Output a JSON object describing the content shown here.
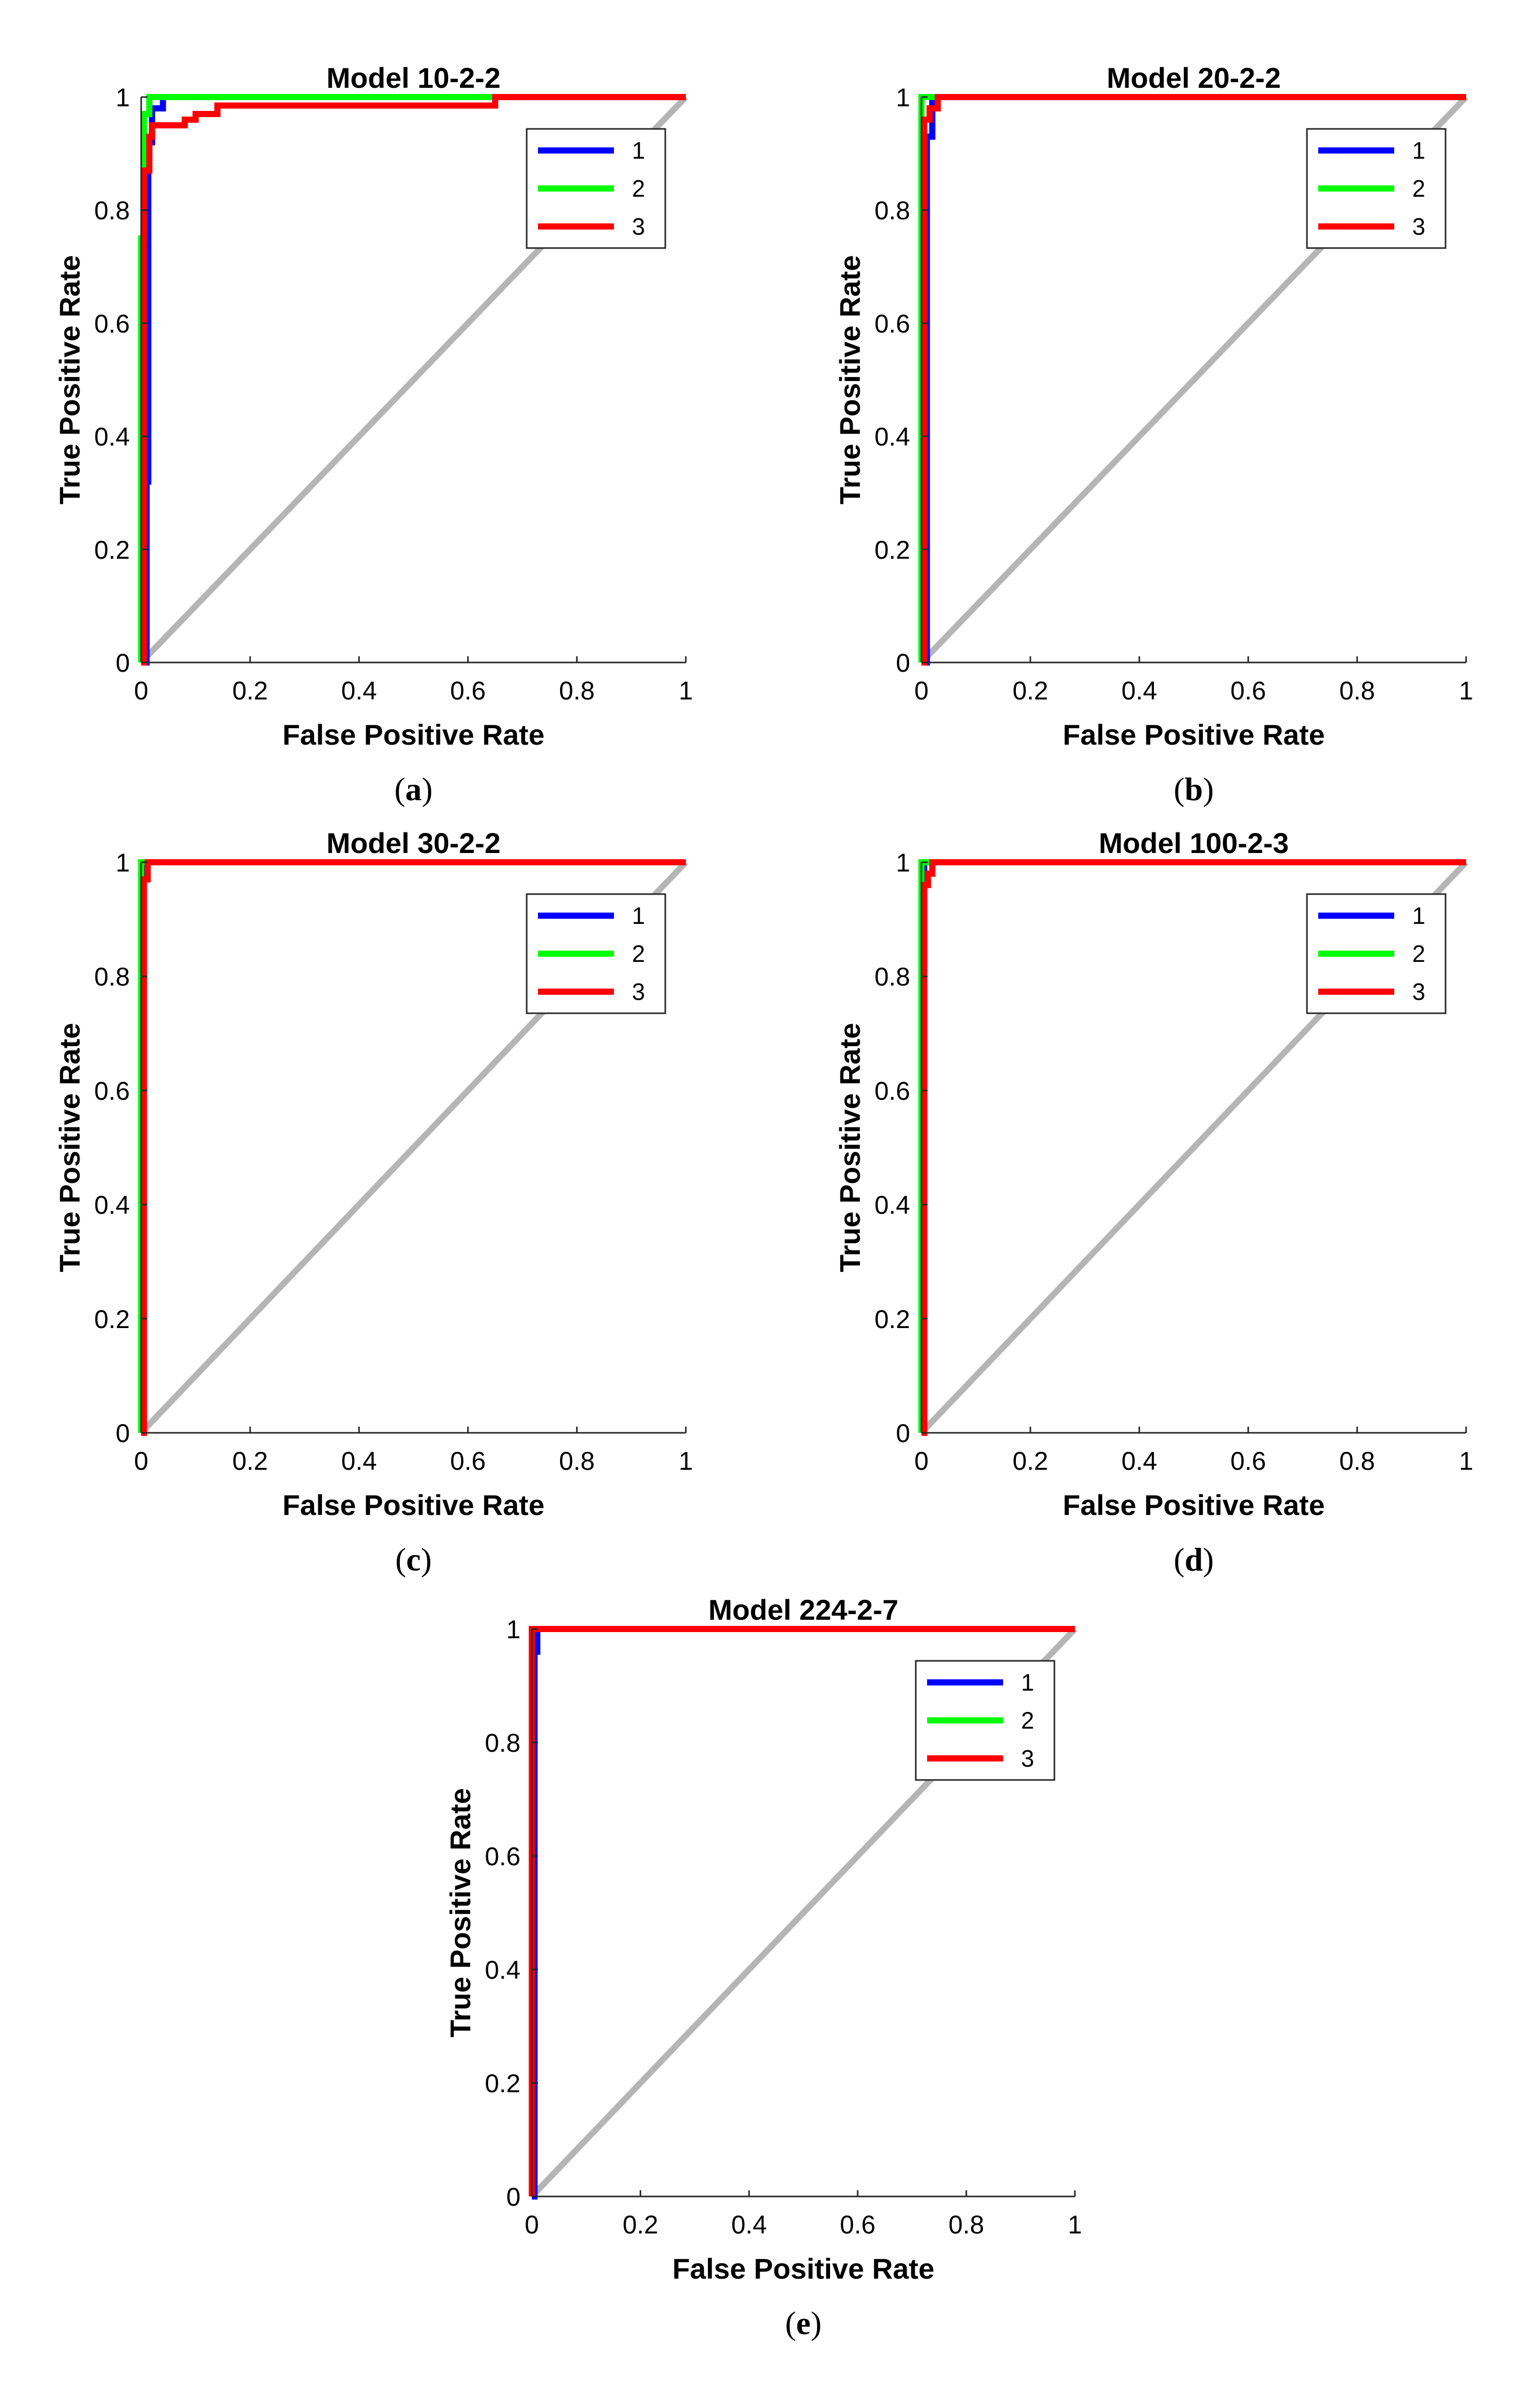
{
  "figure": {
    "axis_xlabel": "False Positive Rate",
    "axis_ylabel": "True Positive Rate"
  },
  "chart_data": [
    {
      "type": "line",
      "title": "Model 10-2-2",
      "caption": "a",
      "xlabel": "False Positive Rate",
      "ylabel": "True Positive Rate",
      "xlim": [
        0,
        1
      ],
      "ylim": [
        0,
        1
      ],
      "xticks": [
        "0",
        "0.2",
        "0.4",
        "0.6",
        "0.8",
        "1"
      ],
      "yticks": [
        "0",
        "0.2",
        "0.4",
        "0.6",
        "0.8",
        "1"
      ],
      "legend": [
        "1",
        "2",
        "3"
      ],
      "legend_position": "top-right",
      "diagonal": {
        "x": [
          0,
          1
        ],
        "y": [
          0,
          1
        ],
        "color": "#b5b5b5"
      },
      "series": [
        {
          "name": "1",
          "color": "#0000ff",
          "x": [
            0,
            0.01,
            0.01,
            0.013,
            0.013,
            0.02,
            0.02,
            0.04,
            0.04,
            1
          ],
          "y": [
            0,
            0,
            0.32,
            0.32,
            0.92,
            0.92,
            0.98,
            0.98,
            1,
            1
          ]
        },
        {
          "name": "2",
          "color": "#00ff00",
          "x": [
            0,
            0,
            0.005,
            0.005,
            0.015,
            0.015,
            0.65,
            0.65,
            1
          ],
          "y": [
            0,
            0.75,
            0.75,
            0.97,
            0.97,
            1,
            1,
            1,
            1
          ]
        },
        {
          "name": "3",
          "color": "#ff0000",
          "x": [
            0,
            0.005,
            0.005,
            0.015,
            0.015,
            0.02,
            0.02,
            0.08,
            0.08,
            0.1,
            0.1,
            0.14,
            0.14,
            0.65,
            0.65,
            1
          ],
          "y": [
            0,
            0,
            0.87,
            0.87,
            0.93,
            0.93,
            0.95,
            0.95,
            0.96,
            0.96,
            0.97,
            0.97,
            0.985,
            0.985,
            1,
            1
          ]
        }
      ]
    },
    {
      "type": "line",
      "title": "Model 20-2-2",
      "caption": "b",
      "xlabel": "False Positive Rate",
      "ylabel": "True Positive Rate",
      "xlim": [
        0,
        1
      ],
      "ylim": [
        0,
        1
      ],
      "xticks": [
        "0",
        "0.2",
        "0.4",
        "0.6",
        "0.8",
        "1"
      ],
      "yticks": [
        "0",
        "0.2",
        "0.4",
        "0.6",
        "0.8",
        "1"
      ],
      "legend": [
        "1",
        "2",
        "3"
      ],
      "legend_position": "top-right",
      "diagonal": {
        "x": [
          0,
          1
        ],
        "y": [
          0,
          1
        ],
        "color": "#b5b5b5"
      },
      "series": [
        {
          "name": "1",
          "color": "#0000ff",
          "x": [
            0,
            0.01,
            0.01,
            0.02,
            0.02,
            1
          ],
          "y": [
            0,
            0,
            0.93,
            0.93,
            1,
            1
          ]
        },
        {
          "name": "2",
          "color": "#00ff00",
          "x": [
            0,
            0,
            1
          ],
          "y": [
            0,
            1,
            1
          ]
        },
        {
          "name": "3",
          "color": "#ff0000",
          "x": [
            0,
            0.005,
            0.005,
            0.015,
            0.015,
            0.03,
            0.03,
            1
          ],
          "y": [
            0,
            0,
            0.96,
            0.96,
            0.98,
            0.98,
            1,
            1
          ]
        }
      ]
    },
    {
      "type": "line",
      "title": "Model 30-2-2",
      "caption": "c",
      "xlabel": "False Positive Rate",
      "ylabel": "True Positive Rate",
      "xlim": [
        0,
        1
      ],
      "ylim": [
        0,
        1
      ],
      "xticks": [
        "0",
        "0.2",
        "0.4",
        "0.6",
        "0.8",
        "1"
      ],
      "yticks": [
        "0",
        "0.2",
        "0.4",
        "0.6",
        "0.8",
        "1"
      ],
      "legend": [
        "1",
        "2",
        "3"
      ],
      "legend_position": "top-right",
      "diagonal": {
        "x": [
          0,
          1
        ],
        "y": [
          0,
          1
        ],
        "color": "#b5b5b5"
      },
      "series": [
        {
          "name": "1",
          "color": "#0000ff",
          "x": [
            0,
            0.005,
            0.005,
            1
          ],
          "y": [
            0,
            0,
            1,
            1
          ]
        },
        {
          "name": "2",
          "color": "#00ff00",
          "x": [
            0,
            0,
            1
          ],
          "y": [
            0,
            1,
            1
          ]
        },
        {
          "name": "3",
          "color": "#ff0000",
          "x": [
            0,
            0.005,
            0.005,
            0.012,
            0.012,
            1
          ],
          "y": [
            0,
            0,
            0.97,
            0.97,
            1,
            1
          ]
        }
      ]
    },
    {
      "type": "line",
      "title": "Model 100-2-3",
      "caption": "d",
      "xlabel": "False Positive Rate",
      "ylabel": "True Positive Rate",
      "xlim": [
        0,
        1
      ],
      "ylim": [
        0,
        1
      ],
      "xticks": [
        "0",
        "0.2",
        "0.4",
        "0.6",
        "0.8",
        "1"
      ],
      "yticks": [
        "0",
        "0.2",
        "0.4",
        "0.6",
        "0.8",
        "1"
      ],
      "legend": [
        "1",
        "2",
        "3"
      ],
      "legend_position": "top-right",
      "diagonal": {
        "x": [
          0,
          1
        ],
        "y": [
          0,
          1
        ],
        "color": "#b5b5b5"
      },
      "series": [
        {
          "name": "1",
          "color": "#0000ff",
          "x": [
            0,
            0.005,
            0.005,
            1
          ],
          "y": [
            0,
            0,
            1,
            1
          ]
        },
        {
          "name": "2",
          "color": "#00ff00",
          "x": [
            0,
            0,
            1
          ],
          "y": [
            0,
            1,
            1
          ]
        },
        {
          "name": "3",
          "color": "#ff0000",
          "x": [
            0,
            0.005,
            0.005,
            0.012,
            0.012,
            0.02,
            0.02,
            1
          ],
          "y": [
            0,
            0,
            0.96,
            0.96,
            0.98,
            0.98,
            1,
            1
          ]
        }
      ]
    },
    {
      "type": "line",
      "title": "Model 224-2-7",
      "caption": "e",
      "xlabel": "False Positive Rate",
      "ylabel": "True Positive Rate",
      "xlim": [
        0,
        1
      ],
      "ylim": [
        0,
        1
      ],
      "xticks": [
        "0",
        "0.2",
        "0.4",
        "0.6",
        "0.8",
        "1"
      ],
      "yticks": [
        "0",
        "0.2",
        "0.4",
        "0.6",
        "0.8",
        "1"
      ],
      "legend": [
        "1",
        "2",
        "3"
      ],
      "legend_position": "top-right",
      "diagonal": {
        "x": [
          0,
          1
        ],
        "y": [
          0,
          1
        ],
        "color": "#b5b5b5"
      },
      "series": [
        {
          "name": "1",
          "color": "#0000ff",
          "x": [
            0,
            0.005,
            0.005,
            0.01,
            0.01,
            1
          ],
          "y": [
            0,
            0,
            0.96,
            0.96,
            1,
            1
          ]
        },
        {
          "name": "2",
          "color": "#00ff00",
          "x": [
            0,
            0,
            1
          ],
          "y": [
            0,
            1,
            1
          ]
        },
        {
          "name": "3",
          "color": "#ff0000",
          "x": [
            0,
            0,
            1
          ],
          "y": [
            0,
            1,
            1
          ]
        }
      ]
    }
  ]
}
